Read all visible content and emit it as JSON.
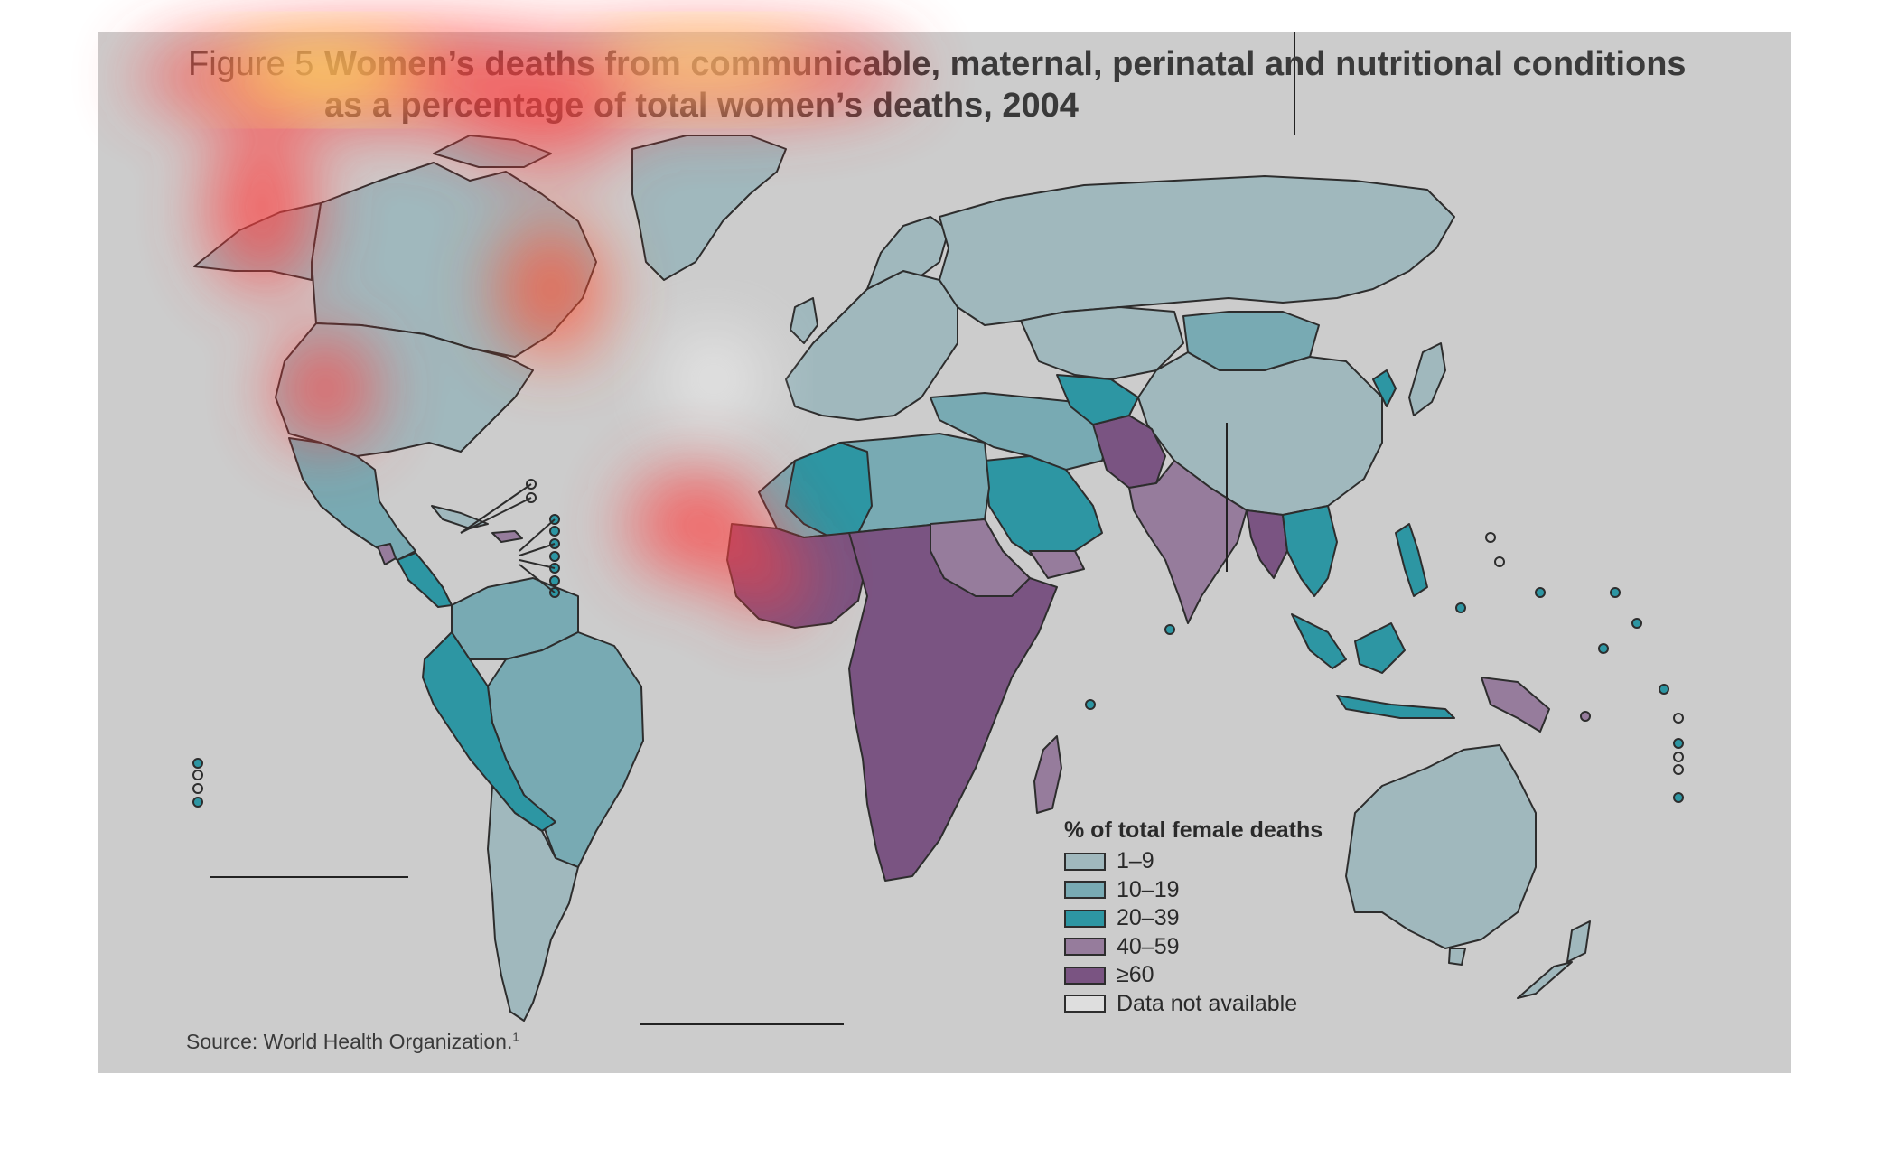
{
  "title": {
    "figure_label": "Figure 5",
    "line1": "Women’s deaths from communicable, maternal, perinatal and nutritional conditions",
    "line2": "as a percentage of total women’s deaths, 2004"
  },
  "legend": {
    "title": "% of total female deaths",
    "items": [
      {
        "label": "1–9",
        "color": "#a0b8bd"
      },
      {
        "label": "10–19",
        "color": "#78aab3"
      },
      {
        "label": "20–39",
        "color": "#2d96a3"
      },
      {
        "label": "40–59",
        "color": "#967c9c"
      },
      {
        "label": "≥60",
        "color": "#7a5482"
      },
      {
        "label": "Data not available",
        "color": "#dedede"
      }
    ]
  },
  "source": {
    "text": "Source: World Health Organization.",
    "note": "1"
  },
  "colors": {
    "background": "#cccccc",
    "border": "#2d2d2d",
    "heatmap_hot": "#ffff60",
    "heatmap_warm": "#ff4040"
  }
}
